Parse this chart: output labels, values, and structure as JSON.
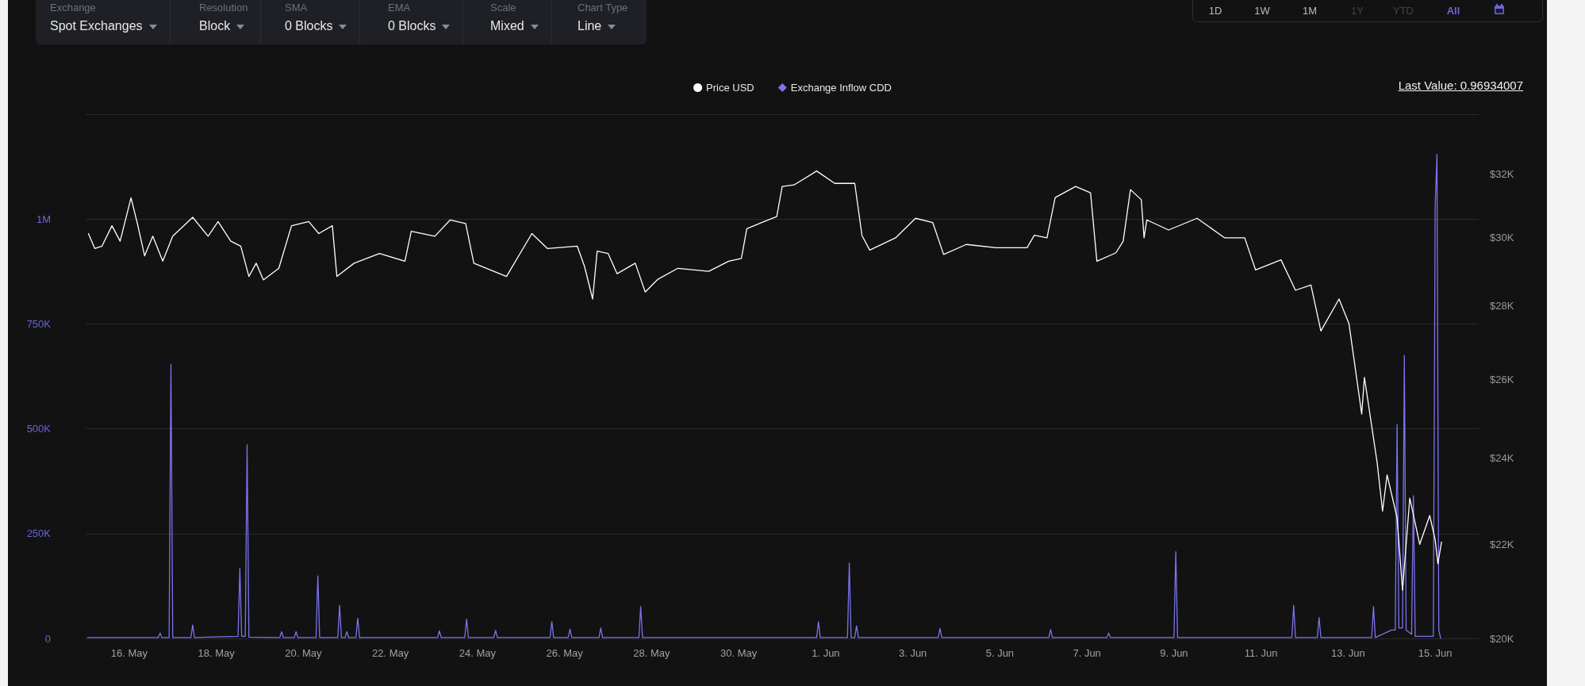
{
  "chart_data": {
    "type": "line",
    "xlim": [
      "--05-15",
      "--06-16"
    ],
    "xticks": [
      {
        "value": "--05-16",
        "label": "16. May"
      },
      {
        "value": "--05-18",
        "label": "18. May"
      },
      {
        "value": "--05-20",
        "label": "20. May"
      },
      {
        "value": "--05-22",
        "label": "22. May"
      },
      {
        "value": "--05-24",
        "label": "24. May"
      },
      {
        "value": "--05-26",
        "label": "26. May"
      },
      {
        "value": "--05-28",
        "label": "28. May"
      },
      {
        "value": "--05-30",
        "label": "30. May"
      },
      {
        "value": "--06-01",
        "label": "1. Jun"
      },
      {
        "value": "--06-03",
        "label": "3. Jun"
      },
      {
        "value": "--06-05",
        "label": "5. Jun"
      },
      {
        "value": "--06-07",
        "label": "7. Jun"
      },
      {
        "value": "--06-09",
        "label": "9. Jun"
      },
      {
        "value": "--06-11",
        "label": "11. Jun"
      },
      {
        "value": "--06-13",
        "label": "13. Jun"
      },
      {
        "value": "--06-15",
        "label": "15. Jun"
      }
    ],
    "ylim": [
      0,
      1250000
    ],
    "yticks": [
      {
        "value": 0,
        "label": "0"
      },
      {
        "value": 250000,
        "label": "250K"
      },
      {
        "value": 500000,
        "label": "500K"
      },
      {
        "value": 750000,
        "label": "750K"
      },
      {
        "value": 1000000,
        "label": "1M"
      },
      {
        "value": 1250000,
        "label": null
      }
    ],
    "y2lim": [
      20000,
      34000
    ],
    "y2ticks": [
      {
        "value": 20000,
        "label": "$20K"
      },
      {
        "value": 22000,
        "label": "$22K"
      },
      {
        "value": 24000,
        "label": "$24K"
      },
      {
        "value": 26000,
        "label": "$26K"
      },
      {
        "value": 28000,
        "label": "$28K"
      },
      {
        "value": 30000,
        "label": "$30K"
      },
      {
        "value": 32000,
        "label": "$32K"
      }
    ],
    "log": "y2",
    "grid": "y",
    "legend": "top",
    "marker": "none",
    "line_style": "solid",
    "annotations": [
      "Last Value: 0.96934007",
      "Exchange",
      "Spot Exchanges",
      "Resolution",
      "Block",
      "SMA",
      "0 Blocks",
      "EMA",
      "0 Blocks",
      "Scale",
      "Mixed",
      "Chart Type",
      "Line",
      "1D",
      "1W",
      "1M",
      "1Y",
      "YTD",
      "All"
    ],
    "series": [
      {
        "name": "Price USD",
        "color": "#ffffff",
        "axis": "y2",
        "x": [
          "--05-15T01:30",
          "--05-15T05:00",
          "--05-15T09:00",
          "--05-15T14:30",
          "--05-15T19:00",
          "--05-16T01:00",
          "--05-16T04:30",
          "--05-16T08:30",
          "--05-16T13:00",
          "--05-16T18:30",
          "--05-17T00:00",
          "--05-17T11:00",
          "--05-17T19:30",
          "--05-18T01:00",
          "--05-18T08:00",
          "--05-18T13:30",
          "--05-18T18:00",
          "--05-18T22:00",
          "--05-19T02:00",
          "--05-19T10:30",
          "--05-19T17:30",
          "--05-20T03:00",
          "--05-20T08:30",
          "--05-20T16:00",
          "--05-20T18:30",
          "--05-21T04:00",
          "--05-21T18:00",
          "--05-22T08:00",
          "--05-22T11:30",
          "--05-23T00:30",
          "--05-23T09:00",
          "--05-23T17:30",
          "--05-23T22:00",
          "--05-24T16:00",
          "--05-25T06:00",
          "--05-25T14:30",
          "--05-26T07:00",
          "--05-26T11:00",
          "--05-26T15:30",
          "--05-26T18:00",
          "--05-27T00:00",
          "--05-27T05:00",
          "--05-27T15:00",
          "--05-27T20:30",
          "--05-28T03:30",
          "--05-28T14:30",
          "--05-29T07:30",
          "--05-29T18:30",
          "--05-30T01:30",
          "--05-30T04:30",
          "--05-30T14:00",
          "--05-30T21:00",
          "--05-31T00:00",
          "--05-31T06:30",
          "--05-31T19:00",
          "--06-01T05:00",
          "--06-01T16:00",
          "--06-01T20:00",
          "--06-02T00:15",
          "--06-02T14:30",
          "--06-03T01:30",
          "--06-03T11:00",
          "--06-03T17:00",
          "--06-04T05:30",
          "--06-04T22:00",
          "--06-05T15:00",
          "--06-05T19:00",
          "--06-06T02:00",
          "--06-06T06:30",
          "--06-06T17:45",
          "--06-07T02:00",
          "--06-07T05:30",
          "--06-07T16:00",
          "--06-07T20:00",
          "--06-08T00:00",
          "--06-08T06:00",
          "--06-08T07:30",
          "--06-08T09:00",
          "--06-08T21:00",
          "--06-09T12:45",
          "--06-10T04:00",
          "--06-10T15:00",
          "--06-10T21:00",
          "--06-11T11:00",
          "--06-11T19:00",
          "--06-12T03:30",
          "--06-12T09:00",
          "--06-12T19:00",
          "--06-13T00:30",
          "--06-13T07:30",
          "--06-13T09:00",
          "--06-13T16:00",
          "--06-13T19:00",
          "--06-13T21:30",
          "--06-14T03:00",
          "--06-14T06:00",
          "--06-14T10:00",
          "--06-14T15:30",
          "--06-14T21:00",
          "--06-15T00:00",
          "--06-15T01:30",
          "--06-15T03:30"
        ],
        "values": [
          30130,
          29680,
          29750,
          30370,
          29900,
          31240,
          30440,
          29460,
          30050,
          29300,
          30050,
          30630,
          30050,
          30500,
          29900,
          29750,
          28850,
          29240,
          28750,
          29090,
          30370,
          30500,
          30130,
          30370,
          28850,
          29240,
          29530,
          29300,
          30200,
          30050,
          30550,
          30440,
          29240,
          28850,
          30130,
          29680,
          29750,
          29150,
          28200,
          29600,
          29530,
          28930,
          29240,
          28400,
          28770,
          29090,
          29000,
          29300,
          29380,
          30280,
          30500,
          30650,
          31600,
          31650,
          32100,
          31700,
          31700,
          30070,
          29630,
          30000,
          30600,
          30470,
          29500,
          29800,
          29700,
          29700,
          30080,
          30000,
          31250,
          31600,
          31400,
          29300,
          29550,
          29900,
          31500,
          31180,
          30000,
          30550,
          30240,
          30600,
          30000,
          30000,
          29040,
          29340,
          28450,
          28600,
          27300,
          28200,
          27500,
          25100,
          26050,
          23900,
          22750,
          23600,
          22600,
          21000,
          23050,
          22000,
          22650,
          22100,
          21570,
          22050
        ]
      },
      {
        "name": "Exchange Inflow CDD",
        "color": "#7b73f0",
        "axis": "y",
        "x": [
          "--05-15T01:00",
          "--05-16T16:00",
          "--05-16T17:00",
          "--05-16T18:00",
          "--05-16T22:00",
          "--05-16T23:00",
          "--05-17T00:00",
          "--05-17T10:00",
          "--05-17T11:00",
          "--05-17T12:00",
          "--05-18T12:00",
          "--05-18T13:00",
          "--05-18T14:00",
          "--05-18T16:00",
          "--05-18T17:00",
          "--05-18T18:00",
          "--05-19T11:00",
          "--05-19T12:00",
          "--05-19T13:00",
          "--05-19T19:00",
          "--05-19T20:00",
          "--05-19T21:00",
          "--05-20T07:00",
          "--05-20T08:00",
          "--05-20T09:00",
          "--05-20T19:00",
          "--05-20T20:00",
          "--05-20T21:00",
          "--05-20T23:00",
          "--05-21T00:00",
          "--05-21T01:00",
          "--05-21T05:00",
          "--05-21T06:00",
          "--05-21T07:00",
          "--05-23T02:00",
          "--05-23T03:00",
          "--05-23T04:00",
          "--05-23T17:00",
          "--05-23T18:00",
          "--05-23T19:00",
          "--05-24T09:00",
          "--05-24T10:00",
          "--05-24T11:00",
          "--05-25T16:00",
          "--05-25T17:00",
          "--05-25T18:00",
          "--05-26T02:00",
          "--05-26T03:00",
          "--05-26T04:00",
          "--05-26T19:00",
          "--05-26T20:00",
          "--05-26T21:00",
          "--05-27T17:00",
          "--05-27T18:00",
          "--05-27T19:00",
          "--05-31T19:00",
          "--05-31T20:00",
          "--05-31T21:00",
          "--06-01T12:00",
          "--06-01T13:00",
          "--06-01T14:00",
          "--06-01T16:00",
          "--06-01T17:00",
          "--06-01T18:00",
          "--06-03T14:00",
          "--06-03T15:00",
          "--06-03T16:00",
          "--06-06T03:00",
          "--06-06T04:00",
          "--06-06T05:00",
          "--06-07T11:00",
          "--06-07T12:00",
          "--06-07T13:00",
          "--06-09T00:00",
          "--06-09T01:00",
          "--06-09T02:00",
          "--06-11T17:00",
          "--06-11T18:00",
          "--06-11T19:00",
          "--06-12T07:00",
          "--06-12T08:00",
          "--06-12T09:00",
          "--06-13T13:00",
          "--06-13T14:00",
          "--06-13T15:00",
          "--06-14T00:00",
          "--06-14T02:00",
          "--06-14T03:00",
          "--06-14T04:00",
          "--06-14T06:00",
          "--06-14T07:00",
          "--06-14T08:00",
          "--06-14T11:00",
          "--06-14T12:00",
          "--06-14T13:00",
          "--06-14T23:00",
          "--06-15T00:00",
          "--06-15T01:00",
          "--06-15T02:00",
          "--06-15T03:00"
        ],
        "values": [
          2000,
          2000,
          13000,
          2000,
          2000,
          654000,
          2000,
          2000,
          32000,
          2000,
          5000,
          167000,
          5000,
          5000,
          462000,
          3000,
          2000,
          16000,
          2000,
          2000,
          16000,
          2000,
          2000,
          149000,
          2000,
          2000,
          79000,
          2000,
          2000,
          16000,
          2000,
          2000,
          48000,
          2000,
          2000,
          18000,
          2000,
          2000,
          46000,
          2000,
          2000,
          19000,
          2000,
          2000,
          40000,
          2000,
          2000,
          22000,
          2000,
          2000,
          25000,
          2000,
          2000,
          76000,
          2000,
          2000,
          40000,
          2000,
          2000,
          180000,
          2000,
          2000,
          30000,
          2000,
          2000,
          24000,
          2000,
          2000,
          21000,
          2000,
          2000,
          13000,
          2000,
          2000,
          207000,
          2000,
          2000,
          79000,
          2000,
          2000,
          50000,
          2000,
          2000,
          76000,
          2000,
          20000,
          20000,
          510000,
          25000,
          25000,
          675000,
          20000,
          10000,
          340000,
          5000,
          5000,
          1028000,
          1154000,
          20000,
          0.96934007
        ]
      }
    ]
  }
}
